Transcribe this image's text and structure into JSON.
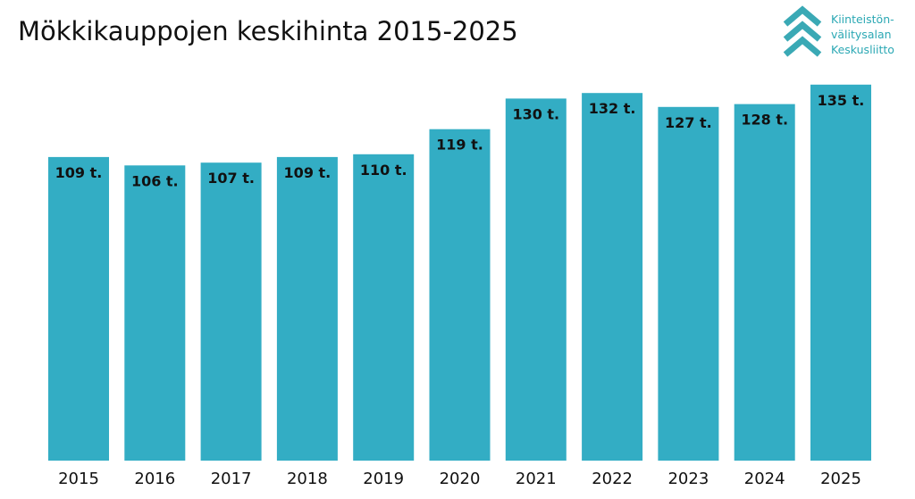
{
  "logo": {
    "name": "chevron-stack-logo-icon",
    "lines": [
      "Kiinteistön-",
      "välitysalan",
      "Keskusliitto"
    ],
    "color": "#3aa9b5"
  },
  "chart_data": {
    "type": "bar",
    "title": "Mökkikauppojen keskihinta 2015-2025",
    "xlabel": "",
    "ylabel": "",
    "categories": [
      "2015",
      "2016",
      "2017",
      "2018",
      "2019",
      "2020",
      "2021",
      "2022",
      "2023",
      "2024",
      "2025"
    ],
    "values": [
      109,
      106,
      107,
      109,
      110,
      119,
      130,
      132,
      127,
      128,
      135
    ],
    "data_labels": [
      "109 t.",
      "106 t.",
      "107 t.",
      "109 t.",
      "110 t.",
      "119 t.",
      "130 t.",
      "132 t.",
      "127 t.",
      "128 t.",
      "135 t."
    ],
    "ylim": [
      0,
      140
    ],
    "grid": false,
    "legend": "none",
    "bar_color": "#33adc4"
  }
}
